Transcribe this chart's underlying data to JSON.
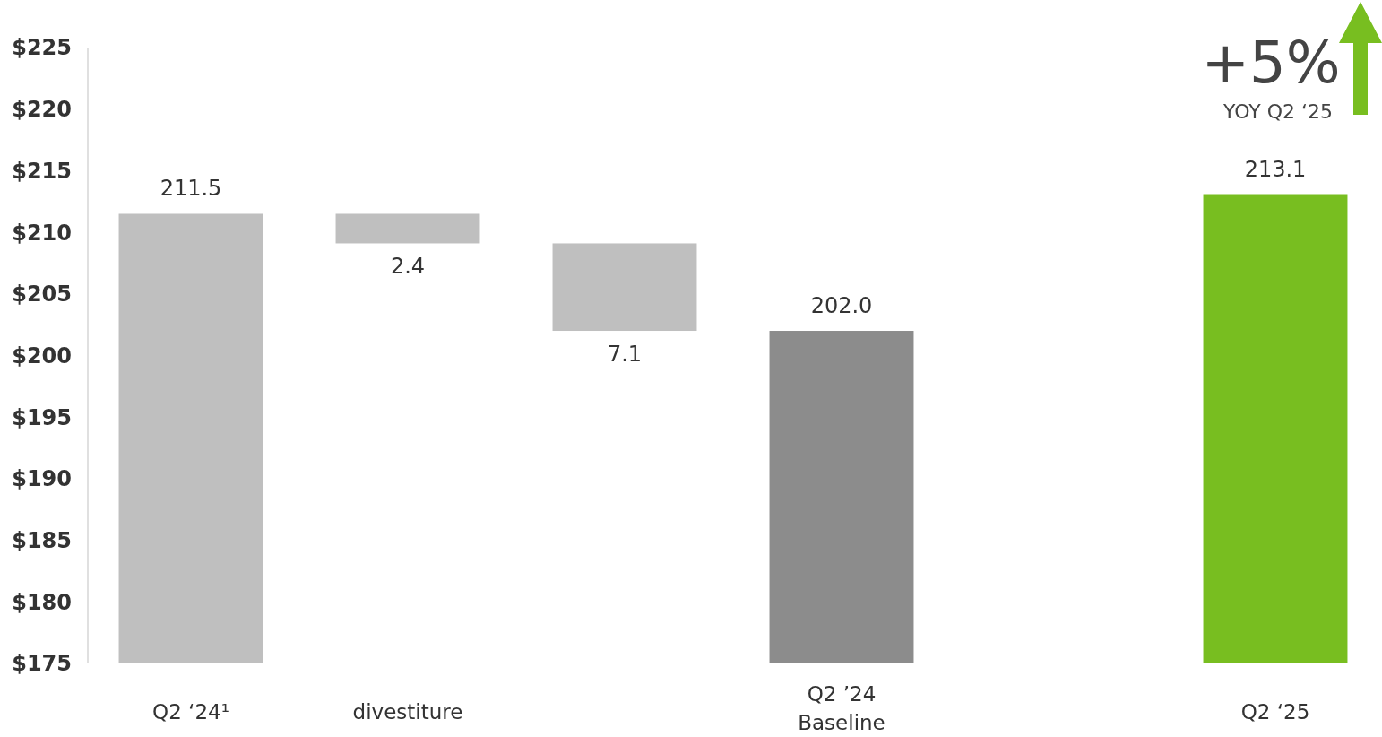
{
  "chart_data": {
    "type": "bar",
    "categories": [
      "Q2 ‘24¹",
      "divestiture",
      null,
      "Q2 ’24 Baseline",
      null,
      "Q2 ‘25"
    ],
    "values": [
      211.5,
      2.4,
      7.1,
      202.0,
      null,
      213.1
    ],
    "base": [
      null,
      209.1,
      202.0,
      null,
      null,
      null
    ],
    "colors": [
      "#bfbfbf",
      "#bfbfbf",
      "#bfbfbf",
      "#8c8c8c",
      null,
      "#78be20"
    ],
    "value_labels": [
      "211.5",
      "2.4",
      "7.1",
      "202.0",
      null,
      "213.1"
    ],
    "ylim": [
      175,
      225
    ],
    "yticks": [
      {
        "value": 175,
        "label": "$175"
      },
      {
        "value": 180,
        "label": "$180"
      },
      {
        "value": 185,
        "label": "$185"
      },
      {
        "value": 190,
        "label": "$190"
      },
      {
        "value": 195,
        "label": "$195"
      },
      {
        "value": 200,
        "label": "$200"
      },
      {
        "value": 205,
        "label": "$205"
      },
      {
        "value": 210,
        "label": "$210"
      },
      {
        "value": 215,
        "label": "$215"
      },
      {
        "value": 220,
        "label": "$220"
      },
      {
        "value": 225,
        "label": "$225"
      }
    ],
    "grid": false,
    "annotations": [
      "+5%",
      "YOY Q2 ‘25"
    ]
  }
}
